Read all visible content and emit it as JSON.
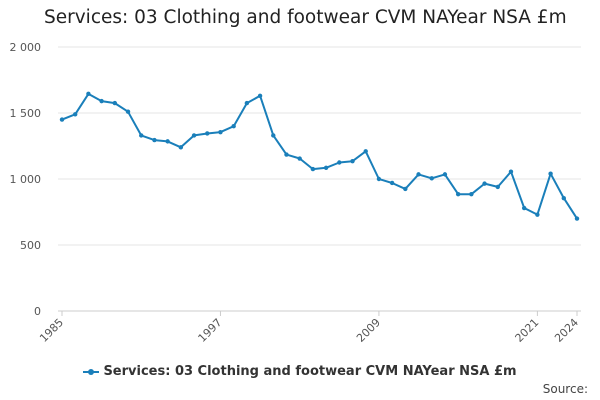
{
  "colors": {
    "series": "#1a7fba",
    "grid": "#e6e6e6",
    "axis_text": "#555555",
    "title": "#222222"
  },
  "source_label": "Source:",
  "chart_data": {
    "type": "line",
    "title": "Services: 03 Clothing and footwear CVM NAYear NSA £m",
    "xlabel": "",
    "ylabel": "",
    "ylim": [
      0,
      2000
    ],
    "yticks": [
      0,
      500,
      1000,
      1500,
      2000
    ],
    "ytick_labels": [
      "0",
      "500",
      "1 000",
      "1 500",
      "2 000"
    ],
    "xtick_labels": [
      "1985",
      "1997",
      "2009",
      "2021",
      "2024"
    ],
    "grid": true,
    "legend": "bottom",
    "x": [
      1985,
      1986,
      1987,
      1988,
      1989,
      1990,
      1991,
      1992,
      1993,
      1994,
      1995,
      1996,
      1997,
      1998,
      1999,
      2000,
      2001,
      2002,
      2003,
      2004,
      2005,
      2006,
      2007,
      2008,
      2009,
      2010,
      2011,
      2012,
      2013,
      2014,
      2015,
      2016,
      2017,
      2018,
      2019,
      2020,
      2021,
      2022,
      2023,
      2024
    ],
    "series": [
      {
        "name": "Services: 03 Clothing and footwear CVM NAYear NSA £m",
        "values": [
          1450,
          1490,
          1645,
          1590,
          1575,
          1510,
          1330,
          1295,
          1285,
          1240,
          1330,
          1345,
          1355,
          1400,
          1575,
          1630,
          1330,
          1185,
          1155,
          1075,
          1085,
          1125,
          1135,
          1210,
          1000,
          970,
          925,
          1035,
          1005,
          1035,
          885,
          885,
          965,
          940,
          1055,
          780,
          730,
          1040,
          855,
          700
        ]
      }
    ]
  }
}
